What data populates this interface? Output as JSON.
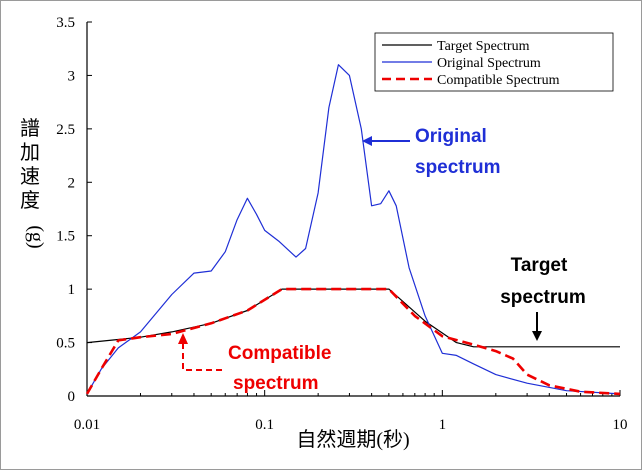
{
  "chart_data": {
    "type": "line",
    "xscale": "log",
    "xlim": [
      0.01,
      10
    ],
    "ylim": [
      0,
      3.5
    ],
    "xticks": [
      "0.01",
      "0.1",
      "1",
      "10"
    ],
    "yticks": [
      "0",
      "0.5",
      "1",
      "1.5",
      "2",
      "2.5",
      "3",
      "3.5"
    ],
    "xlabel": "自然週期(秒)",
    "ylabel": "譜加速度(g)",
    "legend_position": "top-right",
    "series": [
      {
        "name": "Target Spectrum",
        "color": "#000000",
        "style": "solid",
        "points": [
          [
            0.01,
            0.5
          ],
          [
            0.02,
            0.55
          ],
          [
            0.03,
            0.6
          ],
          [
            0.05,
            0.68
          ],
          [
            0.08,
            0.8
          ],
          [
            0.125,
            1.0
          ],
          [
            0.5,
            1.0
          ],
          [
            0.8,
            0.7
          ],
          [
            1.2,
            0.5
          ],
          [
            1.5,
            0.46
          ],
          [
            10,
            0.46
          ]
        ]
      },
      {
        "name": "Original Spectrum",
        "color": "#1f2fd6",
        "style": "solid",
        "points": [
          [
            0.01,
            0.02
          ],
          [
            0.012,
            0.25
          ],
          [
            0.015,
            0.45
          ],
          [
            0.02,
            0.6
          ],
          [
            0.03,
            0.95
          ],
          [
            0.04,
            1.15
          ],
          [
            0.05,
            1.17
          ],
          [
            0.06,
            1.35
          ],
          [
            0.07,
            1.65
          ],
          [
            0.08,
            1.85
          ],
          [
            0.09,
            1.7
          ],
          [
            0.1,
            1.55
          ],
          [
            0.12,
            1.45
          ],
          [
            0.15,
            1.3
          ],
          [
            0.17,
            1.38
          ],
          [
            0.2,
            1.9
          ],
          [
            0.23,
            2.7
          ],
          [
            0.26,
            3.1
          ],
          [
            0.3,
            3.0
          ],
          [
            0.35,
            2.5
          ],
          [
            0.4,
            1.78
          ],
          [
            0.45,
            1.8
          ],
          [
            0.5,
            1.92
          ],
          [
            0.55,
            1.78
          ],
          [
            0.65,
            1.2
          ],
          [
            0.8,
            0.75
          ],
          [
            1.0,
            0.4
          ],
          [
            1.2,
            0.38
          ],
          [
            1.5,
            0.3
          ],
          [
            2.0,
            0.2
          ],
          [
            3.0,
            0.12
          ],
          [
            5.0,
            0.05
          ],
          [
            10,
            0.02
          ]
        ]
      },
      {
        "name": "Compatible Spectrum",
        "color": "#ee0000",
        "style": "dashed",
        "points": [
          [
            0.01,
            0.02
          ],
          [
            0.012,
            0.25
          ],
          [
            0.015,
            0.52
          ],
          [
            0.02,
            0.55
          ],
          [
            0.03,
            0.58
          ],
          [
            0.05,
            0.68
          ],
          [
            0.08,
            0.8
          ],
          [
            0.125,
            1.0
          ],
          [
            0.3,
            1.0
          ],
          [
            0.5,
            1.0
          ],
          [
            0.7,
            0.75
          ],
          [
            1.0,
            0.56
          ],
          [
            1.5,
            0.48
          ],
          [
            2.0,
            0.42
          ],
          [
            2.5,
            0.35
          ],
          [
            3.0,
            0.2
          ],
          [
            4.0,
            0.1
          ],
          [
            6.0,
            0.04
          ],
          [
            10,
            0.02
          ]
        ]
      }
    ],
    "annotations": [
      {
        "text_lines": [
          "Original",
          "spectrum"
        ],
        "color": "#1f2fd6"
      },
      {
        "text_lines": [
          "Target",
          "spectrum"
        ],
        "color": "#000000"
      },
      {
        "text_lines": [
          "Compatible",
          "spectrum"
        ],
        "color": "#ee0000"
      }
    ]
  }
}
